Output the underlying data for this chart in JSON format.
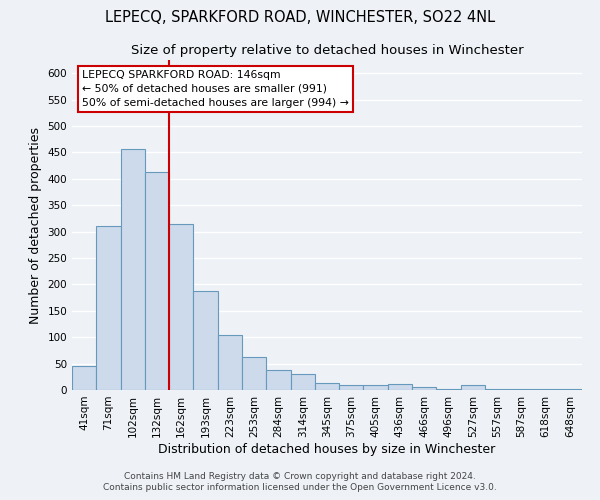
{
  "title": "LEPECQ, SPARKFORD ROAD, WINCHESTER, SO22 4NL",
  "subtitle": "Size of property relative to detached houses in Winchester",
  "xlabel": "Distribution of detached houses by size in Winchester",
  "ylabel": "Number of detached properties",
  "bar_color": "#ccdaeb",
  "bar_edge_color": "#6699bb",
  "categories": [
    "41sqm",
    "71sqm",
    "102sqm",
    "132sqm",
    "162sqm",
    "193sqm",
    "223sqm",
    "253sqm",
    "284sqm",
    "314sqm",
    "345sqm",
    "375sqm",
    "405sqm",
    "436sqm",
    "466sqm",
    "496sqm",
    "527sqm",
    "557sqm",
    "587sqm",
    "618sqm",
    "648sqm"
  ],
  "values": [
    46,
    311,
    457,
    413,
    314,
    187,
    105,
    63,
    37,
    30,
    14,
    10,
    10,
    11,
    5,
    2,
    9,
    2,
    2,
    1,
    2
  ],
  "vline_x": 4.0,
  "vline_color": "#cc0000",
  "annotation_title": "LEPECQ SPARKFORD ROAD: 146sqm",
  "annotation_line1": "← 50% of detached houses are smaller (991)",
  "annotation_line2": "50% of semi-detached houses are larger (994) →",
  "annotation_box_color": "#ffffff",
  "annotation_box_edge": "#cc0000",
  "footer1": "Contains HM Land Registry data © Crown copyright and database right 2024.",
  "footer2": "Contains public sector information licensed under the Open Government Licence v3.0.",
  "ylim": [
    0,
    625
  ],
  "yticks": [
    0,
    50,
    100,
    150,
    200,
    250,
    300,
    350,
    400,
    450,
    500,
    550,
    600
  ],
  "background_color": "#eef2f7",
  "plot_bg_color": "#eef2f7",
  "grid_color": "#ffffff",
  "title_fontsize": 10.5,
  "subtitle_fontsize": 9.5,
  "axis_label_fontsize": 9,
  "tick_fontsize": 7.5,
  "footer_fontsize": 6.5
}
